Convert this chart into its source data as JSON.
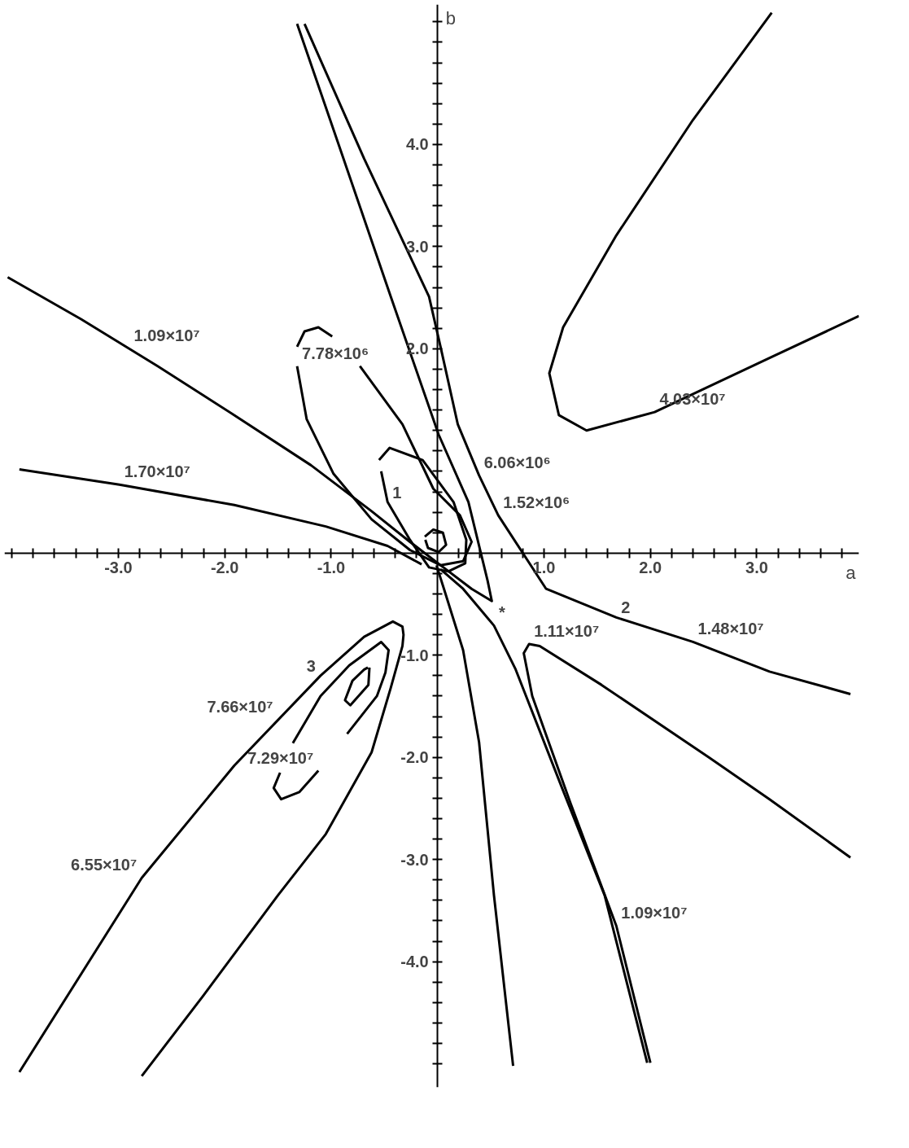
{
  "chart_data": {
    "type": "line",
    "xlabel": "a",
    "ylabel": "b",
    "grid": false,
    "xlim": [
      -4.07,
      3.96
    ],
    "ylim": [
      -5.23,
      5.37
    ],
    "xticks": [
      {
        "value": -4.0,
        "label": null
      },
      {
        "value": -3.8,
        "label": null
      },
      {
        "value": -3.6,
        "label": null
      },
      {
        "value": -3.4,
        "label": null
      },
      {
        "value": -3.2,
        "label": null
      },
      {
        "value": -3.0,
        "label": "-3.0"
      },
      {
        "value": -2.8,
        "label": null
      },
      {
        "value": -2.6,
        "label": null
      },
      {
        "value": -2.4,
        "label": null
      },
      {
        "value": -2.2,
        "label": null
      },
      {
        "value": -2.0,
        "label": "-2.0"
      },
      {
        "value": -1.8,
        "label": null
      },
      {
        "value": -1.6,
        "label": null
      },
      {
        "value": -1.4,
        "label": null
      },
      {
        "value": -1.2,
        "label": null
      },
      {
        "value": -1.0,
        "label": "-1.0"
      },
      {
        "value": -0.8,
        "label": null
      },
      {
        "value": -0.6,
        "label": null
      },
      {
        "value": -0.4,
        "label": null
      },
      {
        "value": -0.2,
        "label": null
      },
      {
        "value": 0.2,
        "label": null
      },
      {
        "value": 0.4,
        "label": null
      },
      {
        "value": 0.6,
        "label": null
      },
      {
        "value": 0.8,
        "label": null
      },
      {
        "value": 1.0,
        "label": "1.0"
      },
      {
        "value": 1.2,
        "label": null
      },
      {
        "value": 1.4,
        "label": null
      },
      {
        "value": 1.6,
        "label": null
      },
      {
        "value": 1.8,
        "label": null
      },
      {
        "value": 2.0,
        "label": "2.0"
      },
      {
        "value": 2.2,
        "label": null
      },
      {
        "value": 2.4,
        "label": null
      },
      {
        "value": 2.6,
        "label": null
      },
      {
        "value": 2.8,
        "label": null
      },
      {
        "value": 3.0,
        "label": "3.0"
      },
      {
        "value": 3.2,
        "label": null
      },
      {
        "value": 3.4,
        "label": null
      },
      {
        "value": 3.6,
        "label": null
      },
      {
        "value": 3.8,
        "label": null
      }
    ],
    "yticks": [
      {
        "value": -5.0,
        "label": null
      },
      {
        "value": -4.8,
        "label": null
      },
      {
        "value": -4.6,
        "label": null
      },
      {
        "value": -4.4,
        "label": null
      },
      {
        "value": -4.2,
        "label": null
      },
      {
        "value": -4.0,
        "label": "-4.0"
      },
      {
        "value": -3.8,
        "label": null
      },
      {
        "value": -3.6,
        "label": null
      },
      {
        "value": -3.4,
        "label": null
      },
      {
        "value": -3.2,
        "label": null
      },
      {
        "value": -3.0,
        "label": "-3.0"
      },
      {
        "value": -2.8,
        "label": null
      },
      {
        "value": -2.6,
        "label": null
      },
      {
        "value": -2.4,
        "label": null
      },
      {
        "value": -2.2,
        "label": null
      },
      {
        "value": -2.0,
        "label": "-2.0"
      },
      {
        "value": -1.8,
        "label": null
      },
      {
        "value": -1.6,
        "label": null
      },
      {
        "value": -1.4,
        "label": null
      },
      {
        "value": -1.2,
        "label": null
      },
      {
        "value": -1.0,
        "label": "-1.0"
      },
      {
        "value": -0.8,
        "label": null
      },
      {
        "value": -0.6,
        "label": null
      },
      {
        "value": -0.4,
        "label": null
      },
      {
        "value": -0.2,
        "label": null
      },
      {
        "value": 0.2,
        "label": null
      },
      {
        "value": 0.4,
        "label": null
      },
      {
        "value": 0.6,
        "label": null
      },
      {
        "value": 0.8,
        "label": null
      },
      {
        "value": 1.0,
        "label": null
      },
      {
        "value": 1.2,
        "label": null
      },
      {
        "value": 1.4,
        "label": null
      },
      {
        "value": 1.6,
        "label": null
      },
      {
        "value": 1.8,
        "label": null
      },
      {
        "value": 2.0,
        "label": "2.0"
      },
      {
        "value": 2.2,
        "label": null
      },
      {
        "value": 2.4,
        "label": null
      },
      {
        "value": 2.6,
        "label": null
      },
      {
        "value": 2.8,
        "label": null
      },
      {
        "value": 3.0,
        "label": "3.0"
      },
      {
        "value": 3.2,
        "label": null
      },
      {
        "value": 3.4,
        "label": null
      },
      {
        "value": 3.6,
        "label": null
      },
      {
        "value": 3.8,
        "label": null
      },
      {
        "value": 4.0,
        "label": "4.0"
      },
      {
        "value": 4.2,
        "label": null
      },
      {
        "value": 4.4,
        "label": null
      },
      {
        "value": 4.6,
        "label": null
      },
      {
        "value": 4.8,
        "label": null
      },
      {
        "value": 5.0,
        "label": null
      },
      {
        "value": 5.2,
        "label": null
      }
    ],
    "series": [
      {
        "color": "#000000",
        "x": [
          -4.04,
          -3.35,
          -2.63,
          -1.91,
          -1.19,
          -0.62,
          -0.26,
          0.03,
          0.32,
          0.51,
          0.47,
          0.29,
          0.01,
          -0.44,
          -0.91,
          -1.32
        ],
        "values": [
          2.7,
          2.29,
          1.83,
          1.35,
          0.86,
          0.41,
          0.11,
          -0.12,
          -0.35,
          -0.47,
          -0.27,
          0.5,
          1.16,
          2.51,
          3.94,
          5.18
        ]
      },
      {
        "color": "#000000",
        "x": [
          -1.25,
          -0.69,
          -0.08,
          0.03,
          0.19,
          0.39,
          0.57,
          1.02,
          1.68,
          2.4,
          3.12,
          3.88
        ],
        "values": [
          5.18,
          3.86,
          2.51,
          2.01,
          1.26,
          0.76,
          0.37,
          -0.35,
          -0.63,
          -0.87,
          -1.16,
          -1.38
        ]
      },
      {
        "color": "#000000",
        "x": [
          -3.93,
          -2.99,
          -1.91,
          -1.05,
          -0.47,
          -0.15
        ],
        "values": [
          0.82,
          0.67,
          0.47,
          0.26,
          0.07,
          -0.11
        ]
      },
      {
        "color": "#000000",
        "x": [
          2.0,
          1.68,
          1.25,
          0.89,
          0.81,
          0.86,
          0.96,
          1.54,
          2.55,
          3.12,
          3.88
        ],
        "values": [
          -4.99,
          -3.65,
          -2.45,
          -1.4,
          -0.98,
          -0.89,
          -0.91,
          -1.29,
          -2.0,
          -2.41,
          -2.98
        ]
      },
      {
        "color": "#000000",
        "x": [
          0.03,
          0.24,
          0.53,
          0.73,
          1.17,
          1.57,
          1.97
        ],
        "values": [
          -0.16,
          -0.35,
          -0.71,
          -1.13,
          -2.3,
          -3.35,
          -4.99
        ]
      },
      {
        "color": "#000000",
        "x": [
          -0.01,
          0.06,
          0.24,
          0.39,
          0.53,
          0.71
        ],
        "values": [
          -0.12,
          -0.35,
          -0.95,
          -1.85,
          -3.35,
          -5.02
        ]
      },
      {
        "color": "#000000",
        "x": [
          3.14,
          2.4,
          1.68,
          1.18,
          1.05,
          1.14,
          1.4,
          2.04,
          3.12,
          3.96
        ],
        "values": [
          5.29,
          4.24,
          3.11,
          2.21,
          1.76,
          1.35,
          1.2,
          1.38,
          1.91,
          2.32
        ]
      },
      {
        "color": "#000000",
        "x": [
          -0.55,
          -0.45,
          -0.14,
          0.15,
          0.27,
          0.26,
          0.1,
          -0.08,
          -0.26,
          -0.47,
          -0.53
        ],
        "values": [
          0.91,
          1.03,
          0.91,
          0.5,
          0.13,
          -0.1,
          -0.18,
          -0.14,
          0.13,
          0.5,
          0.8
        ]
      },
      {
        "color": "#000000",
        "x": [
          -0.12,
          -0.04,
          0.05,
          0.08,
          0.01,
          -0.09,
          -0.115
        ],
        "values": [
          0.16,
          0.23,
          0.2,
          0.08,
          0.01,
          0.05,
          0.13
        ]
      },
      {
        "color": "#000000",
        "x": [
          -1.32,
          -1.23,
          -0.98,
          -0.62,
          -0.26,
          0.03,
          0.24,
          0.32,
          0.21,
          -0.04,
          -0.33,
          -0.73
        ],
        "values": [
          1.83,
          1.31,
          0.78,
          0.33,
          0.03,
          -0.12,
          -0.08,
          0.11,
          0.37,
          0.63,
          1.26,
          1.83
        ]
      },
      {
        "color": "#000000",
        "x": [
          -1.32,
          -1.25,
          -1.12,
          -0.99
        ],
        "values": [
          2.02,
          2.17,
          2.21,
          2.12
        ]
      },
      {
        "color": "#000000",
        "x": [
          -3.93,
          -2.78,
          -1.91,
          -1.1,
          -0.69,
          -0.42,
          -0.33,
          -0.32,
          -0.33,
          -0.44,
          -0.62,
          -1.05,
          -1.5,
          -2.2,
          -2.78
        ],
        "values": [
          -5.08,
          -3.18,
          -2.08,
          -1.2,
          -0.82,
          -0.67,
          -0.72,
          -0.8,
          -0.91,
          -1.32,
          -1.95,
          -2.75,
          -3.35,
          -4.33,
          -5.12
        ]
      },
      {
        "color": "#000000",
        "x": [
          -1.36,
          -1.1,
          -0.83,
          -0.53,
          -0.46,
          -0.49,
          -0.57,
          -0.85
        ],
        "values": [
          -1.86,
          -1.4,
          -1.1,
          -0.87,
          -0.95,
          -1.17,
          -1.4,
          -1.77
        ]
      },
      {
        "color": "#000000",
        "x": [
          -1.48,
          -1.54,
          -1.47,
          -1.3,
          -1.12
        ],
        "values": [
          -2.15,
          -2.3,
          -2.41,
          -2.34,
          -2.13
        ]
      },
      {
        "color": "#000000",
        "x": [
          -0.64,
          -0.65,
          -0.82,
          -0.87,
          -0.8,
          -0.69,
          -0.655
        ],
        "values": [
          -1.12,
          -1.29,
          -1.49,
          -1.44,
          -1.25,
          -1.14,
          -1.12
        ]
      }
    ],
    "annotations": [
      {
        "text": "1.09×10⁷",
        "x": -2.9,
        "y": 2.0
      },
      {
        "text": "7.78×10⁶",
        "x": -1.32,
        "y": 1.83
      },
      {
        "text": "4.03×10⁷",
        "x": 2.04,
        "y": 1.38
      },
      {
        "text": "6.06×10⁶",
        "x": 0.39,
        "y": 0.76
      },
      {
        "text": "1.70×10⁷",
        "x": -2.99,
        "y": 0.67
      },
      {
        "text": "1.52×10⁶",
        "x": 0.57,
        "y": 0.37
      },
      {
        "text": "1",
        "x": -0.47,
        "y": 0.5
      },
      {
        "text": "2",
        "x": 1.68,
        "y": -0.63
      },
      {
        "text": "*",
        "x": 0.53,
        "y": -0.71
      },
      {
        "text": "1.11×10⁷",
        "x": 0.86,
        "y": -0.89
      },
      {
        "text": "1.48×10⁷",
        "x": 2.4,
        "y": -0.87
      },
      {
        "text": "3",
        "x": -1.1,
        "y": -1.2
      },
      {
        "text": "7.66×10⁷",
        "x": -1.5,
        "y": -1.63
      },
      {
        "text": "7.29×10⁷",
        "x": -1.12,
        "y": -2.13
      },
      {
        "text": "6.55×10⁷",
        "x": -2.78,
        "y": -3.18
      },
      {
        "text": "1.09×10⁷",
        "x": 1.68,
        "y": -3.65
      }
    ]
  }
}
